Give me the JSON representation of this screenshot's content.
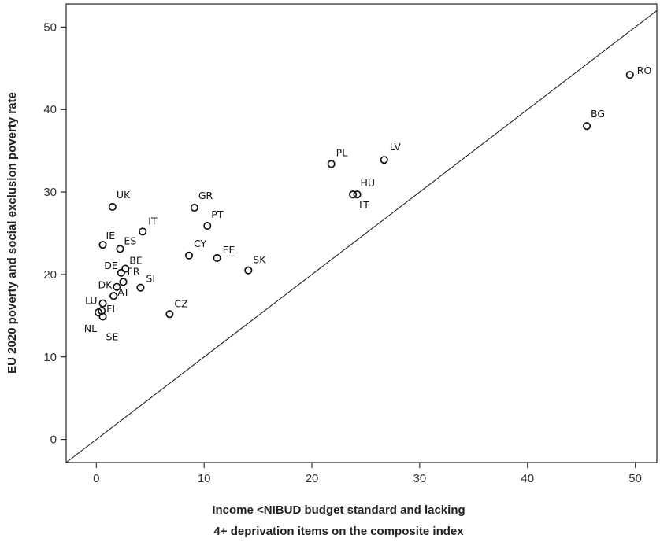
{
  "chart_data": {
    "type": "scatter",
    "title": "",
    "xlabel_lines": [
      "Income <NIBUD budget standard and lacking",
      "4+ deprivation items on the composite index"
    ],
    "ylabel": "EU 2020 poverty and social exclusion poverty rate",
    "xlim": [
      -2.8,
      52
    ],
    "ylim": [
      -2.8,
      52.8
    ],
    "xticks": [
      0,
      10,
      20,
      30,
      40,
      50
    ],
    "yticks": [
      0,
      10,
      20,
      30,
      40,
      50
    ],
    "reference_line": "y = x",
    "grid": false,
    "points": [
      {
        "label": "RO",
        "x": 49.5,
        "y": 44.2
      },
      {
        "label": "BG",
        "x": 45.5,
        "y": 38.0
      },
      {
        "label": "PL",
        "x": 21.8,
        "y": 33.4
      },
      {
        "label": "LV",
        "x": 26.7,
        "y": 33.9
      },
      {
        "label": "HU",
        "x": 24.2,
        "y": 29.7
      },
      {
        "label": "LT",
        "x": 23.8,
        "y": 29.7
      },
      {
        "label": "UK",
        "x": 1.5,
        "y": 28.2
      },
      {
        "label": "GR",
        "x": 9.1,
        "y": 28.1
      },
      {
        "label": "PT",
        "x": 10.3,
        "y": 25.9
      },
      {
        "label": "IT",
        "x": 4.3,
        "y": 25.2
      },
      {
        "label": "IE",
        "x": 0.6,
        "y": 23.6
      },
      {
        "label": "ES",
        "x": 2.2,
        "y": 23.1
      },
      {
        "label": "CY",
        "x": 8.6,
        "y": 22.3
      },
      {
        "label": "EE",
        "x": 11.2,
        "y": 22.0
      },
      {
        "label": "BE",
        "x": 2.7,
        "y": 20.7
      },
      {
        "label": "DE",
        "x": 2.3,
        "y": 20.2
      },
      {
        "label": "SK",
        "x": 14.1,
        "y": 20.5
      },
      {
        "label": "FR",
        "x": 2.5,
        "y": 19.1
      },
      {
        "label": "SI",
        "x": 4.1,
        "y": 18.4
      },
      {
        "label": "DK",
        "x": 1.9,
        "y": 18.5
      },
      {
        "label": "AT",
        "x": 1.6,
        "y": 17.4
      },
      {
        "label": "LU",
        "x": 0.6,
        "y": 16.5
      },
      {
        "label": "CZ",
        "x": 6.8,
        "y": 15.2
      },
      {
        "label": "FI",
        "x": 0.5,
        "y": 15.6
      },
      {
        "label": "NL",
        "x": 0.2,
        "y": 15.4
      },
      {
        "label": "SE",
        "x": 0.6,
        "y": 14.9
      }
    ]
  }
}
